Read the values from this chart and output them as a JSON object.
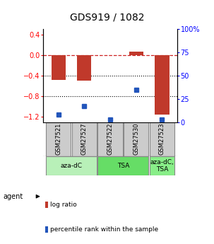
{
  "title": "GDS919 / 1082",
  "samples": [
    "GSM27521",
    "GSM27527",
    "GSM27522",
    "GSM27530",
    "GSM27523"
  ],
  "log_ratios": [
    -0.48,
    -0.5,
    0.0,
    0.07,
    -1.15
  ],
  "percentile_ranks": [
    8,
    17,
    3,
    35,
    3
  ],
  "ylim_left": [
    -1.3,
    0.5
  ],
  "ylim_right": [
    0,
    100
  ],
  "yticks_left": [
    0.4,
    0.0,
    -0.4,
    -0.8,
    -1.2
  ],
  "yticks_right": [
    100,
    75,
    50,
    25,
    0
  ],
  "bar_color": "#c0392b",
  "dot_color": "#2255bb",
  "group_info": [
    {
      "samples": [
        0,
        1
      ],
      "label": "aza-dC",
      "color": "#b8f0b8"
    },
    {
      "samples": [
        2,
        3
      ],
      "label": "TSA",
      "color": "#66dd66"
    },
    {
      "samples": [
        4
      ],
      "label": "aza-dC,\nTSA",
      "color": "#88ee88"
    }
  ],
  "legend_bar_label": "log ratio",
  "legend_dot_label": "percentile rank within the sample",
  "x_positions": [
    0,
    1,
    2,
    3,
    4
  ]
}
